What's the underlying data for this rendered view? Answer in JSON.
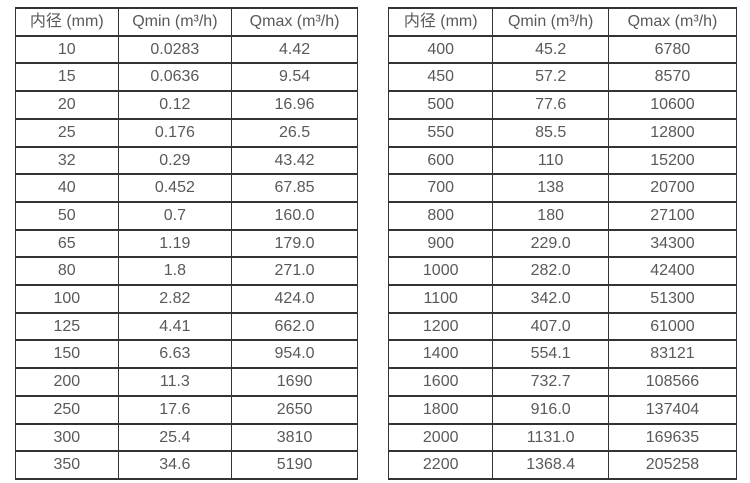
{
  "page": {
    "background_color": "#ffffff",
    "text_color": "#58595b",
    "border_color": "#333333"
  },
  "tables": [
    {
      "name": "flow-rates-small-diameters",
      "headers": [
        "内径 (mm)",
        "Qmin (m³/h)",
        "Qmax (m³/h)"
      ],
      "rows": [
        [
          "10",
          "0.0283",
          "4.42"
        ],
        [
          "15",
          "0.0636",
          "9.54"
        ],
        [
          "20",
          "0.12",
          "16.96"
        ],
        [
          "25",
          "0.176",
          "26.5"
        ],
        [
          "32",
          "0.29",
          "43.42"
        ],
        [
          "40",
          "0.452",
          "67.85"
        ],
        [
          "50",
          "0.7",
          "160.0"
        ],
        [
          "65",
          "1.19",
          "179.0"
        ],
        [
          "80",
          "1.8",
          "271.0"
        ],
        [
          "100",
          "2.82",
          "424.0"
        ],
        [
          "125",
          "4.41",
          "662.0"
        ],
        [
          "150",
          "6.63",
          "954.0"
        ],
        [
          "200",
          "11.3",
          "1690"
        ],
        [
          "250",
          "17.6",
          "2650"
        ],
        [
          "300",
          "25.4",
          "3810"
        ],
        [
          "350",
          "34.6",
          "5190"
        ]
      ]
    },
    {
      "name": "flow-rates-large-diameters",
      "headers": [
        "内径 (mm)",
        "Qmin (m³/h)",
        "Qmax (m³/h)"
      ],
      "rows": [
        [
          "400",
          "45.2",
          "6780"
        ],
        [
          "450",
          "57.2",
          "8570"
        ],
        [
          "500",
          "77.6",
          "10600"
        ],
        [
          "550",
          "85.5",
          "12800"
        ],
        [
          "600",
          "110",
          "15200"
        ],
        [
          "700",
          "138",
          "20700"
        ],
        [
          "800",
          "180",
          "27100"
        ],
        [
          "900",
          "229.0",
          "34300"
        ],
        [
          "1000",
          "282.0",
          "42400"
        ],
        [
          "1100",
          "342.0",
          "51300"
        ],
        [
          "1200",
          "407.0",
          "61000"
        ],
        [
          "1400",
          "554.1",
          "83121"
        ],
        [
          "1600",
          "732.7",
          "108566"
        ],
        [
          "1800",
          "916.0",
          "137404"
        ],
        [
          "2000",
          "1131.0",
          "169635"
        ],
        [
          "2200",
          "1368.4",
          "205258"
        ]
      ]
    }
  ],
  "chart_data": [
    {
      "type": "table",
      "title": "",
      "columns": [
        "内径 (mm)",
        "Qmin (m³/h)",
        "Qmax (m³/h)"
      ],
      "rows": [
        [
          10,
          0.0283,
          4.42
        ],
        [
          15,
          0.0636,
          9.54
        ],
        [
          20,
          0.12,
          16.96
        ],
        [
          25,
          0.176,
          26.5
        ],
        [
          32,
          0.29,
          43.42
        ],
        [
          40,
          0.452,
          67.85
        ],
        [
          50,
          0.7,
          160.0
        ],
        [
          65,
          1.19,
          179.0
        ],
        [
          80,
          1.8,
          271.0
        ],
        [
          100,
          2.82,
          424.0
        ],
        [
          125,
          4.41,
          662.0
        ],
        [
          150,
          6.63,
          954.0
        ],
        [
          200,
          11.3,
          1690
        ],
        [
          250,
          17.6,
          2650
        ],
        [
          300,
          25.4,
          3810
        ],
        [
          350,
          34.6,
          5190
        ]
      ]
    },
    {
      "type": "table",
      "title": "",
      "columns": [
        "内径 (mm)",
        "Qmin (m³/h)",
        "Qmax (m³/h)"
      ],
      "rows": [
        [
          400,
          45.2,
          6780
        ],
        [
          450,
          57.2,
          8570
        ],
        [
          500,
          77.6,
          10600
        ],
        [
          550,
          85.5,
          12800
        ],
        [
          600,
          110,
          15200
        ],
        [
          700,
          138,
          20700
        ],
        [
          800,
          180,
          27100
        ],
        [
          900,
          229.0,
          34300
        ],
        [
          1000,
          282.0,
          42400
        ],
        [
          1100,
          342.0,
          51300
        ],
        [
          1200,
          407.0,
          61000
        ],
        [
          1400,
          554.1,
          83121
        ],
        [
          1600,
          732.7,
          108566
        ],
        [
          1800,
          916.0,
          137404
        ],
        [
          2000,
          1131.0,
          169635
        ],
        [
          2200,
          1368.4,
          205258
        ]
      ]
    }
  ]
}
